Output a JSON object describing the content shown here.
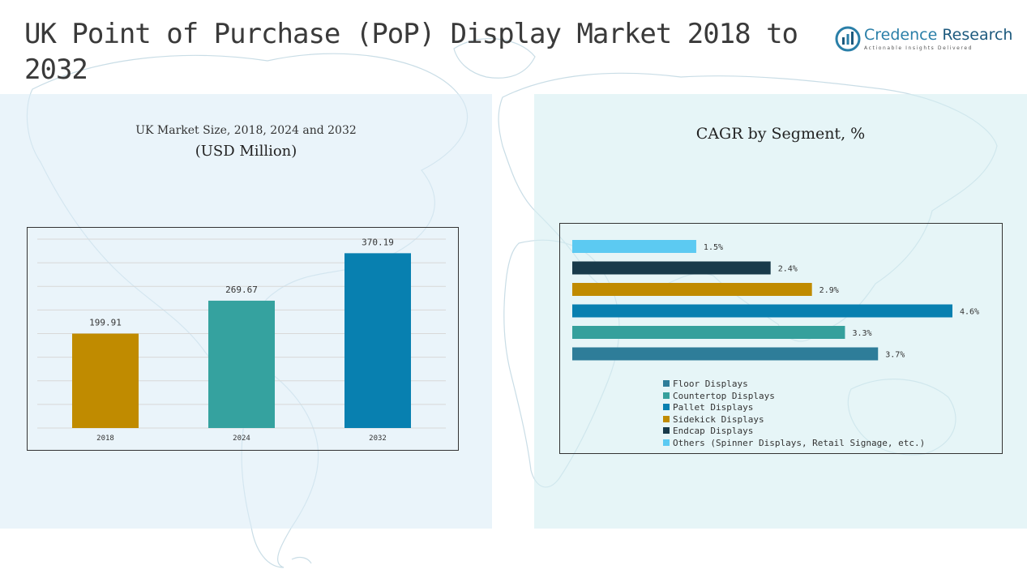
{
  "page_title": "UK Point of Purchase (PoP) Display Market 2018 to 2032",
  "logo": {
    "name_part1": "Credence",
    "name_part2": " Research",
    "tagline": "Actionable Insights Delivered"
  },
  "map_icon": "world-map",
  "colors": {
    "floor": "#2e7d99",
    "countertop": "#35a09c",
    "pallet": "#0880b0",
    "sidekick": "#c08b00",
    "endcap": "#183a4a",
    "others": "#5ccaf2",
    "bar_2018": "#c08b00",
    "bar_2024": "#35a29f",
    "bar_2032": "#0880b0"
  },
  "chart_data": [
    {
      "type": "bar",
      "title": "UK Market Size, 2018, 2024 and 2032",
      "subtitle": "(USD Million)",
      "categories": [
        "2018",
        "2024",
        "2032"
      ],
      "values": [
        199.91,
        269.67,
        370.19
      ],
      "value_labels": [
        "199.91",
        "269.67",
        "370.19"
      ],
      "ylim": [
        0,
        400
      ],
      "grid": true
    },
    {
      "type": "bar",
      "orientation": "horizontal",
      "title": "CAGR by Segment, %",
      "categories": [
        "Others (Spinner Displays, Retail Signage, etc.)",
        "Endcap Displays",
        "Sidekick Displays",
        "Pallet Displays",
        "Countertop Displays",
        "Floor Displays"
      ],
      "values": [
        1.5,
        2.4,
        2.9,
        4.6,
        3.3,
        3.7
      ],
      "value_labels": [
        "1.5%",
        "2.4%",
        "2.9%",
        "4.6%",
        "3.3%",
        "3.7%"
      ],
      "legend": [
        "Floor Displays",
        "Countertop Displays",
        "Pallet Displays",
        "Sidekick Displays",
        "Endcap Displays",
        "Others (Spinner Displays, Retail Signage, etc.)"
      ],
      "legend_position": "bottom",
      "xlim": [
        0,
        4.6
      ]
    }
  ]
}
